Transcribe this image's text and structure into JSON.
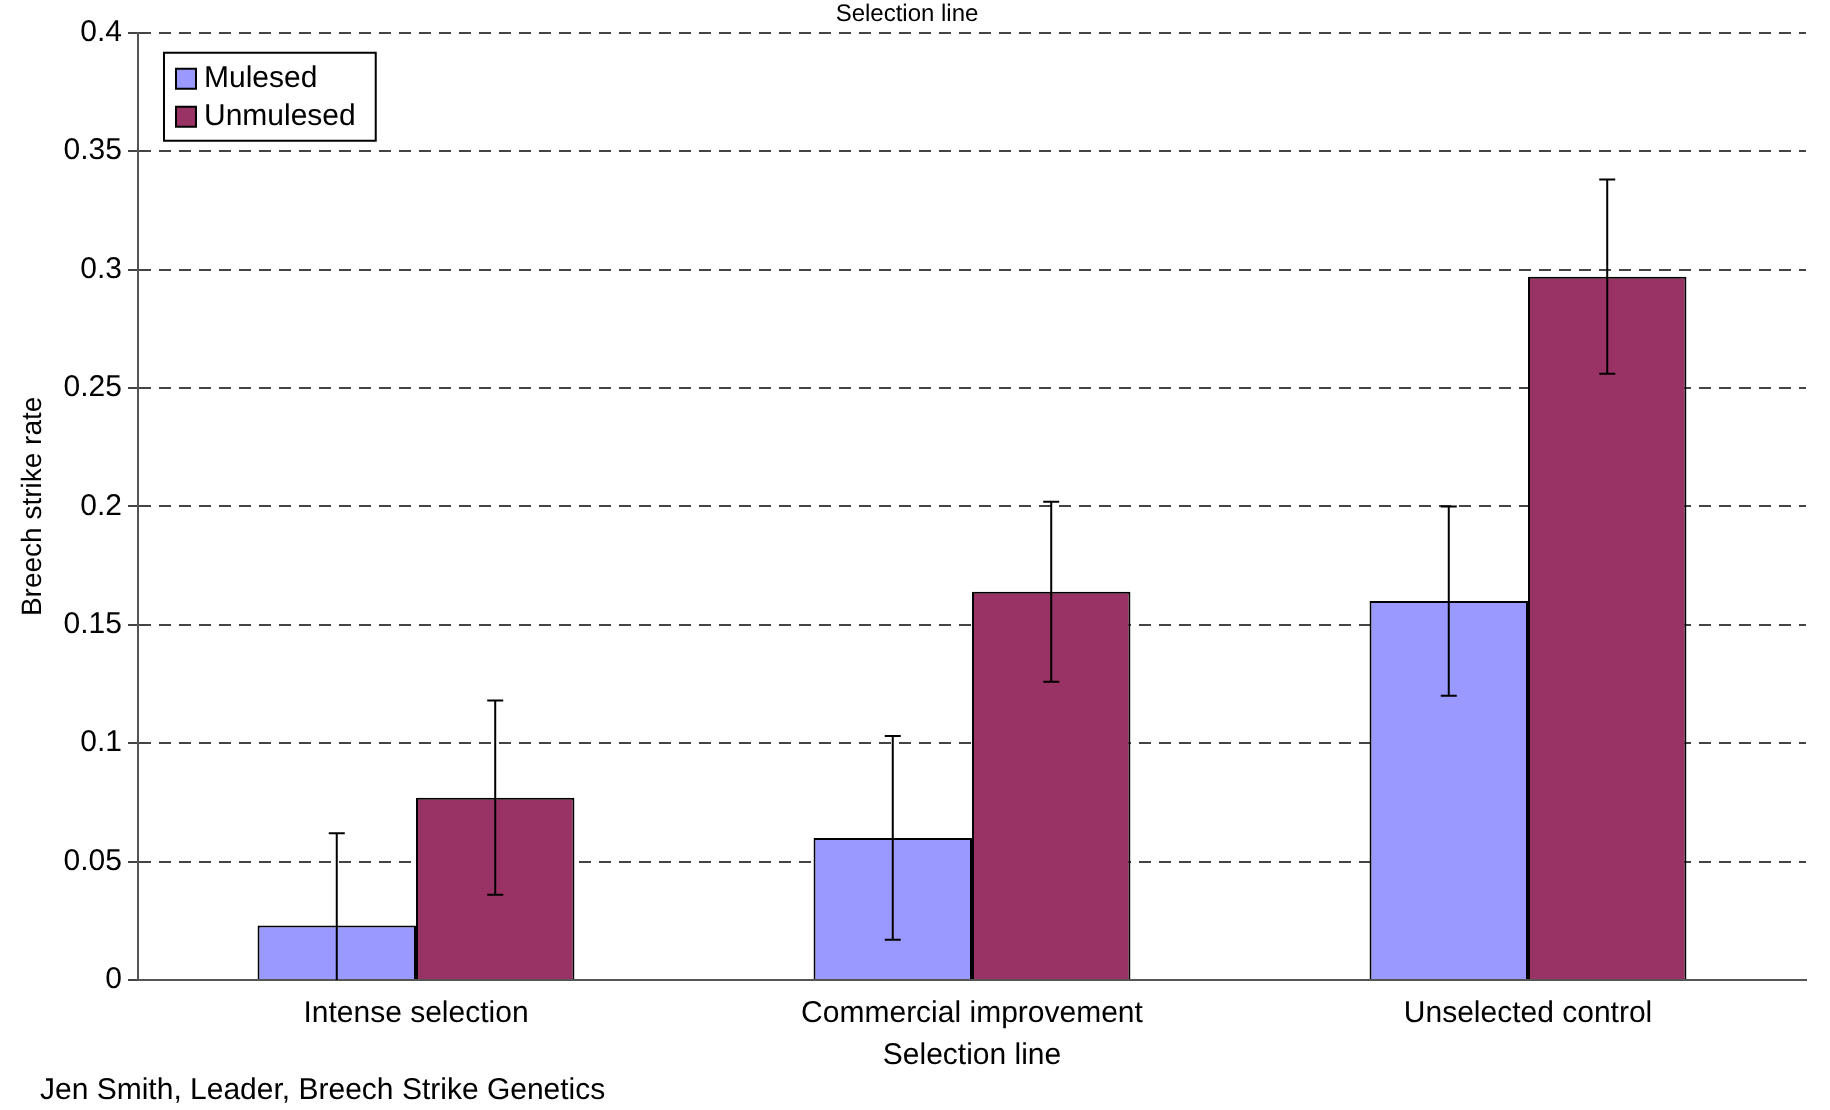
{
  "chart_data": {
    "type": "bar",
    "title": "Selection line",
    "xlabel": "Selection line",
    "ylabel": "Breech strike rate",
    "categories": [
      "Intense selection",
      "Commercial improvement",
      "Unselected control"
    ],
    "series": [
      {
        "name": "Mulesed",
        "color": "#9999ff",
        "values": [
          0.023,
          0.06,
          0.16
        ],
        "errors": [
          [
            0,
            0.062
          ],
          0.043,
          0.04
        ]
      },
      {
        "name": "Unmulesed",
        "color": "#993366",
        "values": [
          0.077,
          0.164,
          0.297
        ],
        "errors": [
          0.041,
          0.038,
          0.041
        ]
      }
    ],
    "ylim": [
      0,
      0.4
    ],
    "yticks": [
      0,
      0.05,
      0.1,
      0.15,
      0.2,
      0.25,
      0.3,
      0.35,
      0.4
    ],
    "grid": "y",
    "legend": "top left",
    "annotations": [
      "Jen Smith, Leader, Breech Strike Genetics"
    ]
  }
}
